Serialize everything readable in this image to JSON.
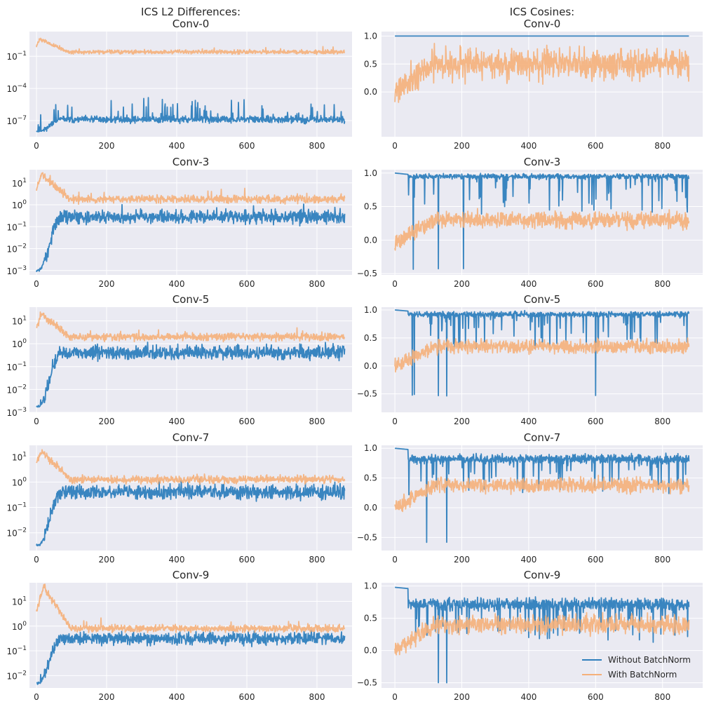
{
  "colors": {
    "axes_background": "#eaeaf2",
    "grid": "#ffffff",
    "without_batchnorm": "#2f7fbd",
    "with_batchnorm": "#f5b07a"
  },
  "chart_data": [
    {
      "type": "line",
      "column": "left",
      "row": 0,
      "title_lines": [
        "ICS L2 Differences:",
        "Conv-0"
      ],
      "yscale": "log",
      "xlim": [
        -20,
        900
      ],
      "ylim_exp": [
        -8.5,
        1.3
      ],
      "xticks": [
        0,
        200,
        400,
        600,
        800
      ],
      "yticks": [
        {
          "exp": -1,
          "label": "10",
          "sup": "−1"
        },
        {
          "exp": -4,
          "label": "10",
          "sup": "−4"
        },
        {
          "exp": -7,
          "label": "10",
          "sup": "−7"
        }
      ],
      "series": [
        {
          "key": "without",
          "profile": {
            "start": -8,
            "transitionEnd": 70,
            "plateau": -6.9,
            "noise": 0.25,
            "spikes": 0.06,
            "spikeAmp": 2.0,
            "seed": 11
          }
        },
        {
          "key": "with",
          "profile": {
            "start": 0.0,
            "peakAt": 10,
            "peak": 0.6,
            "plateau": -0.6,
            "noise": 0.15,
            "spikes": 0.02,
            "spikeAmp": 0.4,
            "seed": 12
          }
        }
      ]
    },
    {
      "type": "line",
      "column": "right",
      "row": 0,
      "title_lines": [
        "ICS Cosines:",
        "Conv-0"
      ],
      "yscale": "linear",
      "xlim": [
        -40,
        920
      ],
      "ylim": [
        -0.8,
        1.08
      ],
      "xticks": [
        0,
        200,
        400,
        600,
        800
      ],
      "yticks": [
        {
          "v": 1.0,
          "label": "1.0"
        },
        {
          "v": 0.5,
          "label": "0.5"
        },
        {
          "v": 0.0,
          "label": "0.0"
        }
      ],
      "series": [
        {
          "key": "without",
          "profile": {
            "constant": 1.0
          }
        },
        {
          "key": "with",
          "profile": {
            "start": 0.05,
            "plateau": 0.5,
            "noise": 0.22,
            "minClip": -0.35,
            "maxClip": 0.87,
            "seed": 21
          }
        }
      ]
    },
    {
      "type": "line",
      "column": "left",
      "row": 1,
      "title_lines": [
        "Conv-3"
      ],
      "yscale": "log",
      "xlim": [
        -20,
        900
      ],
      "ylim_exp": [
        -3.2,
        1.6
      ],
      "xticks": [
        0,
        200,
        400,
        600,
        800
      ],
      "yticks": [
        {
          "exp": 1,
          "label": "10",
          "sup": "1"
        },
        {
          "exp": 0,
          "label": "10",
          "sup": "0"
        },
        {
          "exp": -1,
          "label": "10",
          "sup": "−1"
        },
        {
          "exp": -2,
          "label": "10",
          "sup": "−2"
        },
        {
          "exp": -3,
          "label": "10",
          "sup": "−3"
        }
      ],
      "series": [
        {
          "key": "without",
          "profile": {
            "start": -3.0,
            "transitionEnd": 70,
            "plateau": -0.55,
            "noise": 0.25,
            "spikes": 0.02,
            "spikeAmp": 0.5,
            "seed": 31
          }
        },
        {
          "key": "with",
          "profile": {
            "start": 0.7,
            "peakAt": 15,
            "peak": 1.4,
            "plateau": 0.25,
            "noise": 0.14,
            "spikes": 0.02,
            "spikeAmp": 0.4,
            "seed": 32
          }
        }
      ]
    },
    {
      "type": "line",
      "column": "right",
      "row": 1,
      "title_lines": [
        "Conv-3"
      ],
      "yscale": "linear",
      "xlim": [
        -40,
        920
      ],
      "ylim": [
        -0.52,
        1.05
      ],
      "xticks": [
        0,
        200,
        400,
        600,
        800
      ],
      "yticks": [
        {
          "v": 1.0,
          "label": "1.0"
        },
        {
          "v": 0.5,
          "label": "0.5"
        },
        {
          "v": 0.0,
          "label": "0.0"
        },
        {
          "v": -0.5,
          "label": "−0.5"
        }
      ],
      "series": [
        {
          "key": "without",
          "profile": {
            "cosineHigh": true,
            "start": 1.0,
            "transitionEnd": 40,
            "plateau": 0.95,
            "noise": 0.03,
            "dips": 0.07,
            "dipDepth": 0.55,
            "deepDips": [
              55,
              130,
              205
            ],
            "deepValue": -0.45,
            "minClip": -0.5,
            "maxClip": 1.0,
            "seed": 41
          }
        },
        {
          "key": "with",
          "profile": {
            "start": -0.05,
            "plateau": 0.3,
            "noise": 0.1,
            "minClip": -0.15,
            "maxClip": 0.6,
            "seed": 42
          }
        }
      ]
    },
    {
      "type": "line",
      "column": "left",
      "row": 2,
      "title_lines": [
        "Conv-5"
      ],
      "yscale": "log",
      "xlim": [
        -20,
        900
      ],
      "ylim_exp": [
        -3.0,
        1.6
      ],
      "xticks": [
        0,
        200,
        400,
        600,
        800
      ],
      "yticks": [
        {
          "exp": 1,
          "label": "10",
          "sup": "1"
        },
        {
          "exp": 0,
          "label": "10",
          "sup": "0"
        },
        {
          "exp": -1,
          "label": "10",
          "sup": "−1"
        },
        {
          "exp": -2,
          "label": "10",
          "sup": "−2"
        },
        {
          "exp": -3,
          "label": "10",
          "sup": "−3"
        }
      ],
      "series": [
        {
          "key": "without",
          "profile": {
            "start": -2.75,
            "transitionEnd": 70,
            "plateau": -0.4,
            "noise": 0.25,
            "spikes": 0.02,
            "spikeAmp": 0.4,
            "seed": 51
          }
        },
        {
          "key": "with",
          "profile": {
            "start": 0.7,
            "peakAt": 15,
            "peak": 1.3,
            "plateau": 0.3,
            "noise": 0.13,
            "spikes": 0.02,
            "spikeAmp": 0.35,
            "seed": 52
          }
        }
      ]
    },
    {
      "type": "line",
      "column": "right",
      "row": 2,
      "title_lines": [
        "Conv-5"
      ],
      "yscale": "linear",
      "xlim": [
        -40,
        920
      ],
      "ylim": [
        -0.83,
        1.05
      ],
      "xticks": [
        0,
        200,
        400,
        600,
        800
      ],
      "yticks": [
        {
          "v": 1.0,
          "label": "1.0"
        },
        {
          "v": 0.5,
          "label": "0.5"
        },
        {
          "v": 0.0,
          "label": "0.0"
        },
        {
          "v": -0.5,
          "label": "−0.5"
        }
      ],
      "series": [
        {
          "key": "without",
          "profile": {
            "cosineHigh": true,
            "start": 1.0,
            "transitionEnd": 40,
            "plateau": 0.92,
            "noise": 0.04,
            "dips": 0.08,
            "dipDepth": 0.6,
            "deepDips": [
              52,
              58,
              130,
              155,
              600
            ],
            "deepValue": -0.55,
            "minClip": -0.8,
            "maxClip": 1.0,
            "seed": 61
          }
        },
        {
          "key": "with",
          "profile": {
            "start": 0.0,
            "plateau": 0.35,
            "noise": 0.1,
            "minClip": -0.2,
            "maxClip": 0.6,
            "seed": 62
          }
        }
      ]
    },
    {
      "type": "line",
      "column": "left",
      "row": 3,
      "title_lines": [
        "Conv-7"
      ],
      "yscale": "log",
      "xlim": [
        -20,
        900
      ],
      "ylim_exp": [
        -2.7,
        1.45
      ],
      "xticks": [
        0,
        200,
        400,
        600,
        800
      ],
      "yticks": [
        {
          "exp": 1,
          "label": "10",
          "sup": "1"
        },
        {
          "exp": 0,
          "label": "10",
          "sup": "0"
        },
        {
          "exp": -1,
          "label": "10",
          "sup": "−1"
        },
        {
          "exp": -2,
          "label": "10",
          "sup": "−2"
        }
      ],
      "series": [
        {
          "key": "without",
          "profile": {
            "start": -2.5,
            "transitionEnd": 70,
            "plateau": -0.4,
            "noise": 0.22,
            "spikes": 0.02,
            "spikeAmp": 0.35,
            "seed": 71
          }
        },
        {
          "key": "with",
          "profile": {
            "start": 0.8,
            "peakAt": 15,
            "peak": 1.2,
            "plateau": 0.1,
            "noise": 0.12,
            "spikes": 0.02,
            "spikeAmp": 0.35,
            "seed": 72
          }
        }
      ]
    },
    {
      "type": "line",
      "column": "right",
      "row": 3,
      "title_lines": [
        "Conv-7"
      ],
      "yscale": "linear",
      "xlim": [
        -40,
        920
      ],
      "ylim": [
        -0.72,
        1.05
      ],
      "xticks": [
        0,
        200,
        400,
        600,
        800
      ],
      "yticks": [
        {
          "v": 1.0,
          "label": "1.0"
        },
        {
          "v": 0.5,
          "label": "0.5"
        },
        {
          "v": 0.0,
          "label": "0.0"
        },
        {
          "v": -0.5,
          "label": "−0.5"
        }
      ],
      "series": [
        {
          "key": "without",
          "profile": {
            "cosineHigh": true,
            "start": 1.0,
            "transitionEnd": 40,
            "plateau": 0.82,
            "noise": 0.06,
            "dips": 0.1,
            "dipDepth": 0.6,
            "deepDips": [
              95,
              155
            ],
            "deepValue": -0.62,
            "minClip": -0.65,
            "maxClip": 1.0,
            "seed": 81
          }
        },
        {
          "key": "with",
          "profile": {
            "start": 0.0,
            "plateau": 0.38,
            "noise": 0.1,
            "minClip": -0.25,
            "maxClip": 0.65,
            "seed": 82
          }
        }
      ]
    },
    {
      "type": "line",
      "column": "right",
      "row": 4,
      "title_lines": [
        "Conv-9"
      ],
      "yscale": "linear",
      "xlim": [
        -40,
        920
      ],
      "ylim": [
        -0.58,
        1.05
      ],
      "xticks": [
        0,
        200,
        400,
        600,
        800
      ],
      "yticks": [
        {
          "v": 1.0,
          "label": "1.0"
        },
        {
          "v": 0.5,
          "label": "0.5"
        },
        {
          "v": 0.0,
          "label": "0.0"
        },
        {
          "v": -0.5,
          "label": "−0.5"
        }
      ],
      "series": [
        {
          "key": "without",
          "profile": {
            "cosineHigh": true,
            "start": 0.98,
            "transitionEnd": 40,
            "plateau": 0.72,
            "noise": 0.08,
            "dips": 0.1,
            "dipDepth": 0.55,
            "deepDips": [
              130,
              155
            ],
            "deepValue": -0.5,
            "minClip": -0.55,
            "maxClip": 1.0,
            "seed": 91
          }
        },
        {
          "key": "with",
          "profile": {
            "start": 0.0,
            "plateau": 0.4,
            "noise": 0.12,
            "minClip": -0.2,
            "maxClip": 0.65,
            "seed": 92
          }
        }
      ]
    },
    {
      "type": "line",
      "column": "left",
      "row": 4,
      "title_lines": [
        "Conv-9"
      ],
      "yscale": "log",
      "xlim": [
        -20,
        900
      ],
      "ylim_exp": [
        -2.5,
        1.75
      ],
      "xticks": [
        0,
        200,
        400,
        600,
        800
      ],
      "yticks": [
        {
          "exp": 1,
          "label": "10",
          "sup": "1"
        },
        {
          "exp": 0,
          "label": "10",
          "sup": "0"
        },
        {
          "exp": -1,
          "label": "10",
          "sup": "−1"
        },
        {
          "exp": -2,
          "label": "10",
          "sup": "−2"
        }
      ],
      "series": [
        {
          "key": "without",
          "profile": {
            "start": -2.3,
            "transitionEnd": 70,
            "plateau": -0.5,
            "noise": 0.2,
            "spikes": 0.02,
            "spikeAmp": 0.3,
            "seed": 101
          }
        },
        {
          "key": "with",
          "profile": {
            "start": 0.6,
            "peakAt": 20,
            "peak": 1.6,
            "plateau": -0.1,
            "noise": 0.12,
            "spikes": 0.02,
            "spikeAmp": 0.3,
            "seed": 102
          }
        }
      ]
    }
  ],
  "legend": {
    "placement": "lower-right of last right panel",
    "entries": [
      {
        "key": "without",
        "label": "Without BatchNorm"
      },
      {
        "key": "with",
        "label": "With BatchNorm"
      }
    ]
  }
}
